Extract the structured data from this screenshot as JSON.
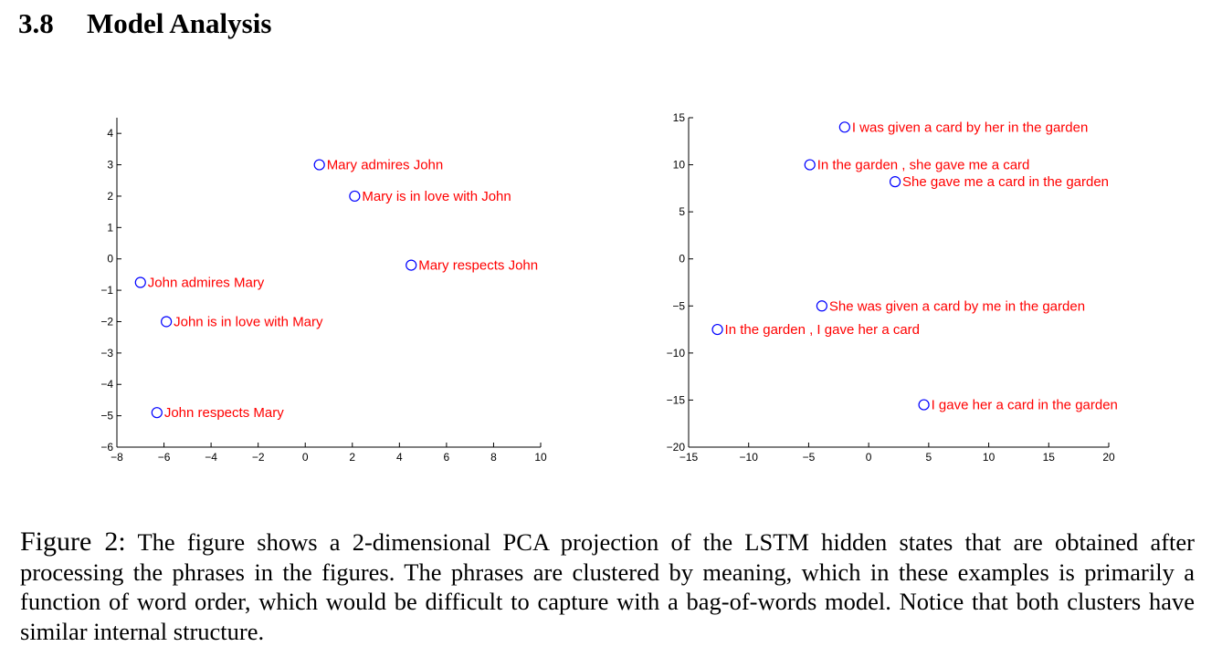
{
  "section": {
    "number": "3.8",
    "title": "Model Analysis"
  },
  "colors": {
    "marker": "#0000ff",
    "label": "#ff0000",
    "axis": "#000000"
  },
  "chart_data": [
    {
      "type": "scatter",
      "xlim": [
        -8,
        10
      ],
      "ylim": [
        -6,
        4.5
      ],
      "xticks": [
        -8,
        -6,
        -4,
        -2,
        0,
        2,
        4,
        6,
        8,
        10
      ],
      "yticks": [
        -6,
        -5,
        -4,
        -3,
        -2,
        -1,
        0,
        1,
        2,
        3,
        4
      ],
      "grid": false,
      "points": [
        {
          "x": 0.6,
          "y": 3.0,
          "label": "Mary admires John"
        },
        {
          "x": 2.1,
          "y": 2.0,
          "label": "Mary is in love with John"
        },
        {
          "x": 4.5,
          "y": -0.2,
          "label": "Mary respects John"
        },
        {
          "x": -7.0,
          "y": -0.75,
          "label": "John admires Mary"
        },
        {
          "x": -5.9,
          "y": -2.0,
          "label": "John is in love with Mary"
        },
        {
          "x": -6.3,
          "y": -4.9,
          "label": "John respects Mary"
        }
      ]
    },
    {
      "type": "scatter",
      "xlim": [
        -15,
        20
      ],
      "ylim": [
        -20,
        15
      ],
      "xticks": [
        -15,
        -10,
        -5,
        0,
        5,
        10,
        15,
        20
      ],
      "yticks": [
        -20,
        -15,
        -10,
        -5,
        0,
        5,
        10,
        15
      ],
      "grid": false,
      "points": [
        {
          "x": -2.0,
          "y": 14.0,
          "label": "I was given a card by her in the garden"
        },
        {
          "x": -4.9,
          "y": 10.0,
          "label": "In the garden , she gave me a card"
        },
        {
          "x": 2.2,
          "y": 8.2,
          "label": "She gave me a card in the garden"
        },
        {
          "x": -3.9,
          "y": -5.0,
          "label": "She was given a card by me in the garden"
        },
        {
          "x": -12.6,
          "y": -7.5,
          "label": "In the garden , I gave her a card"
        },
        {
          "x": 4.6,
          "y": -15.5,
          "label": "I gave her a card in the garden"
        }
      ]
    }
  ],
  "caption": {
    "label": "Figure 2:",
    "text": "The figure shows a 2-dimensional PCA projection of the LSTM hidden states that are obtained after processing the phrases in the figures. The phrases are clustered by meaning, which in these examples is primarily a function of word order, which would be difficult to capture with a bag-of-words model. Notice that both clusters have similar internal structure."
  }
}
